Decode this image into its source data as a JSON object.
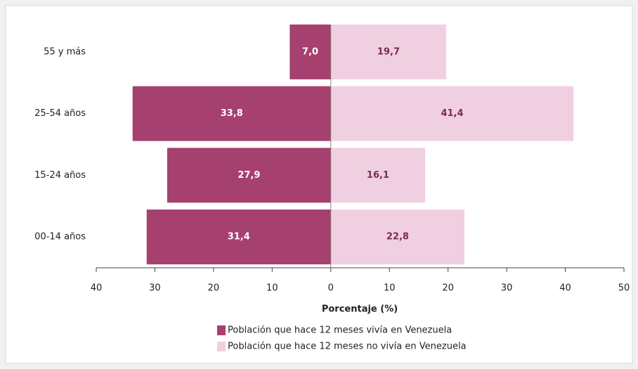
{
  "chart_data": {
    "type": "pyramid",
    "x_label": "Porcentaje (%)",
    "categories": [
      "55 y más",
      "25-54 años",
      "15-24 años",
      "00-14 años"
    ],
    "series": [
      {
        "name": "Población que hace 12 meses vivía en Venezuela",
        "color": "#a6406e",
        "side": "left",
        "values": [
          7.0,
          33.8,
          27.9,
          31.4
        ],
        "value_labels": [
          "7,0",
          "33,8",
          "27,9",
          "31,4"
        ]
      },
      {
        "name": "Población que hace 12 meses no vivía en Venezuela",
        "color": "#f0d0e0",
        "side": "right",
        "values": [
          19.7,
          41.4,
          16.1,
          22.8
        ],
        "value_labels": [
          "19,7",
          "41,4",
          "16,1",
          "22,8"
        ]
      }
    ],
    "xlim": [
      -40,
      50
    ],
    "xticks": [
      {
        "value": -40,
        "label": "40"
      },
      {
        "value": -30,
        "label": "30"
      },
      {
        "value": -20,
        "label": "20"
      },
      {
        "value": -10,
        "label": "10"
      },
      0,
      10,
      20,
      30,
      40,
      50
    ],
    "legend": "bottom"
  }
}
